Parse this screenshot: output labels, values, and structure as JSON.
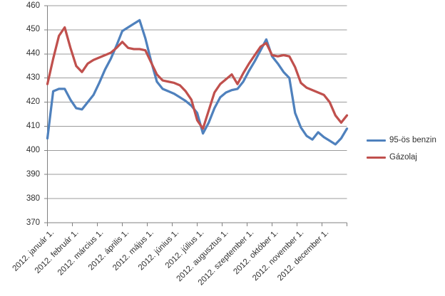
{
  "chart_data": {
    "type": "line",
    "title": "",
    "sampling": "weekly points across 2012",
    "grid": "horizontal gridlines on",
    "y_axis": {
      "min": 370,
      "max": 460,
      "step": 10,
      "tick_labels": [
        "460",
        "450",
        "440",
        "430",
        "420",
        "410",
        "400",
        "390",
        "380",
        "370"
      ]
    },
    "x_axis": {
      "tick_labels": [
        "2012. január 1.",
        "2012. február 1.",
        "2012. március 1.",
        "2012. április 1.",
        "2012. május 1.",
        "2012. június 1.",
        "2012. július 1.",
        "2012. augusztus 1.",
        "2012. szeptember 1.",
        "2012. október 1.",
        "2012. november 1.",
        "2012. december 1."
      ]
    },
    "legend": {
      "position": "right"
    },
    "series": [
      {
        "name": "95-ös benzin",
        "color": "#4F81BD",
        "values": [
          405,
          424.5,
          425.5,
          425.5,
          421,
          417.5,
          417,
          420,
          423,
          428,
          433.5,
          438,
          443.5,
          449.5,
          451,
          452.5,
          454,
          446.5,
          437,
          428.5,
          425.5,
          424.5,
          423.5,
          422,
          420.5,
          418.5,
          415.5,
          407,
          411.5,
          417.5,
          422,
          424,
          425,
          425.5,
          428.5,
          433,
          437,
          441.5,
          446,
          439,
          436,
          432.5,
          430,
          415.5,
          409.5,
          406,
          404.5,
          407.5,
          405.5,
          404,
          402.5,
          405,
          409
        ]
      },
      {
        "name": "Gázolaj",
        "color": "#C0504D",
        "values": [
          427.5,
          438,
          447.5,
          451,
          442.5,
          435,
          432.5,
          436,
          437.5,
          438.5,
          439.5,
          440.5,
          442.5,
          445,
          442.5,
          442,
          442,
          441.5,
          436.5,
          431.5,
          429,
          428.5,
          428,
          427,
          424.5,
          421,
          412.5,
          409,
          416.5,
          424,
          427.5,
          429.5,
          431.5,
          427.5,
          432,
          436,
          439.5,
          443,
          444.5,
          439.5,
          439,
          439.5,
          439,
          434.5,
          428,
          426,
          425,
          424,
          423,
          420,
          414.5,
          411.5,
          414.5
        ]
      }
    ],
    "style": {
      "gridline_color": "#9b9b9b",
      "axis_color": "#808080",
      "label_color": "#303030",
      "line_width": 3.25
    }
  }
}
